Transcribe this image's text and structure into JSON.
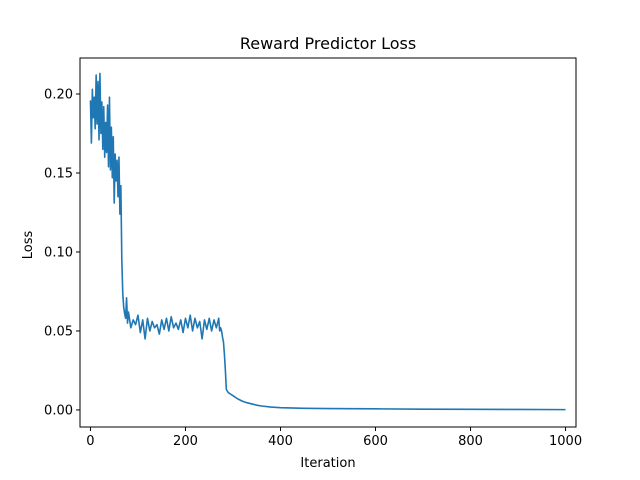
{
  "chart_data": {
    "type": "line",
    "title": "Reward Predictor Loss",
    "xlabel": "Iteration",
    "ylabel": "Loss",
    "xlim": [
      -22,
      1022
    ],
    "ylim": [
      -0.0108,
      0.2228
    ],
    "xticks": [
      0,
      200,
      400,
      600,
      800,
      1000
    ],
    "xtick_labels": [
      "0",
      "200",
      "400",
      "600",
      "800",
      "1000"
    ],
    "yticks": [
      0.0,
      0.05,
      0.1,
      0.15,
      0.2
    ],
    "ytick_labels": [
      "0.00",
      "0.05",
      "0.10",
      "0.15",
      "0.20"
    ],
    "grid": false,
    "legend": "none",
    "color": "#1f77b4",
    "series": [
      {
        "x": [
          0,
          2,
          4,
          6,
          8,
          10,
          12,
          14,
          16,
          18,
          20,
          22,
          24,
          26,
          28,
          30,
          32,
          34,
          36,
          38,
          40,
          42,
          44,
          46,
          48,
          50,
          52,
          54,
          56,
          58,
          60,
          62,
          64,
          66,
          68,
          70,
          72,
          74,
          76,
          78,
          80,
          85,
          90,
          95,
          100,
          105,
          110,
          115,
          120,
          125,
          130,
          135,
          140,
          145,
          150,
          155,
          160,
          165,
          170,
          175,
          180,
          185,
          190,
          195,
          200,
          205,
          210,
          215,
          220,
          225,
          230,
          235,
          240,
          245,
          250,
          255,
          260,
          265,
          270,
          272,
          274,
          276,
          278,
          280,
          282,
          284,
          286,
          290,
          295,
          300,
          310,
          320,
          330,
          340,
          350,
          360,
          380,
          400,
          450,
          500,
          600,
          700,
          800,
          900,
          1000
        ],
        "y": [
          0.196,
          0.169,
          0.203,
          0.185,
          0.198,
          0.178,
          0.212,
          0.181,
          0.208,
          0.171,
          0.213,
          0.175,
          0.195,
          0.165,
          0.192,
          0.16,
          0.182,
          0.163,
          0.193,
          0.154,
          0.198,
          0.152,
          0.179,
          0.147,
          0.173,
          0.131,
          0.162,
          0.145,
          0.158,
          0.135,
          0.16,
          0.124,
          0.142,
          0.095,
          0.074,
          0.065,
          0.061,
          0.058,
          0.071,
          0.055,
          0.062,
          0.052,
          0.057,
          0.054,
          0.06,
          0.049,
          0.057,
          0.045,
          0.058,
          0.05,
          0.056,
          0.052,
          0.054,
          0.048,
          0.057,
          0.051,
          0.058,
          0.05,
          0.059,
          0.052,
          0.055,
          0.051,
          0.057,
          0.049,
          0.058,
          0.052,
          0.06,
          0.05,
          0.058,
          0.052,
          0.056,
          0.045,
          0.057,
          0.051,
          0.058,
          0.05,
          0.057,
          0.052,
          0.058,
          0.05,
          0.052,
          0.05,
          0.046,
          0.043,
          0.035,
          0.025,
          0.013,
          0.011,
          0.01,
          0.009,
          0.007,
          0.0055,
          0.0045,
          0.0038,
          0.003,
          0.0025,
          0.0018,
          0.0014,
          0.001,
          0.0009,
          0.0007,
          0.0005,
          0.0004,
          0.0003,
          0.0002
        ]
      }
    ]
  }
}
